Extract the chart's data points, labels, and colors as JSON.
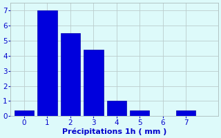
{
  "bar_positions": [
    0,
    1,
    2,
    3,
    4,
    5,
    6,
    7
  ],
  "bar_heights": [
    0.4,
    7.0,
    5.5,
    4.4,
    1.0,
    0.4,
    0.0,
    0.4
  ],
  "bar_color": "#0000dd",
  "bar_edge_color": "#0000aa",
  "bar_width": 0.85,
  "xlabel": "Précipitations 1h ( mm )",
  "xlabel_color": "#0000cc",
  "ylabel": "",
  "xlim": [
    -0.6,
    8.4
  ],
  "ylim": [
    0,
    7.5
  ],
  "yticks": [
    0,
    1,
    2,
    3,
    4,
    5,
    6,
    7
  ],
  "xticks": [
    0,
    1,
    2,
    3,
    4,
    5,
    6,
    7
  ],
  "tick_color": "#0000cc",
  "grid_color": "#bbcccc",
  "background_color": "#ddfafa",
  "figure_background": "#ddfafa",
  "xlabel_fontsize": 8,
  "tick_fontsize": 7.5
}
